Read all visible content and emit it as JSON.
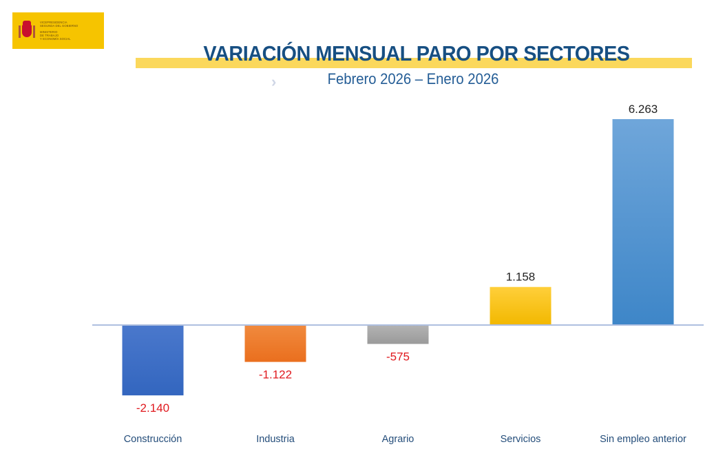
{
  "logo": {
    "lines_top": [
      "VICEPRESIDENCIA",
      "SEGUNDA DEL GOBIERNO"
    ],
    "lines_bottom": [
      "MINISTERIO",
      "DE TRABAJO",
      "Y ECONOMÍA SOCIAL"
    ]
  },
  "header": {
    "title": "VARIACIÓN MENSUAL PARO POR SECTORES",
    "subtitle": "Febrero 2026  – Enero 2026",
    "chevron_icon": "›"
  },
  "colors": {
    "title": "#174f82",
    "title_band": "#fbd85c",
    "positive_label": "#222222",
    "negative_label": "#e0191e",
    "baseline": "#aebfe0"
  },
  "chart_data": {
    "type": "bar",
    "title": "VARIACIÓN MENSUAL PARO POR SECTORES",
    "subtitle": "Febrero 2026 – Enero 2026",
    "xlabel": "",
    "ylabel": "",
    "grid": false,
    "legend": "none",
    "ylim": [
      -2140,
      6263
    ],
    "categories": [
      "Construcción",
      "Industria",
      "Agrario",
      "Servicios",
      "Sin empleo anterior"
    ],
    "values": [
      -2140,
      -1122,
      -575,
      1158,
      6263
    ],
    "labels": [
      "-2.140",
      "-1.122",
      "-575",
      "1.158",
      "6.263"
    ],
    "bar_colors": [
      [
        "#4a78cc",
        "#3366bf"
      ],
      [
        "#f08a3e",
        "#ea6f1e"
      ],
      [
        "#b3b3b3",
        "#9a9a9a"
      ],
      [
        "#ffcf3a",
        "#f2b800"
      ],
      [
        "#6fa6da",
        "#3e86c8"
      ]
    ]
  }
}
